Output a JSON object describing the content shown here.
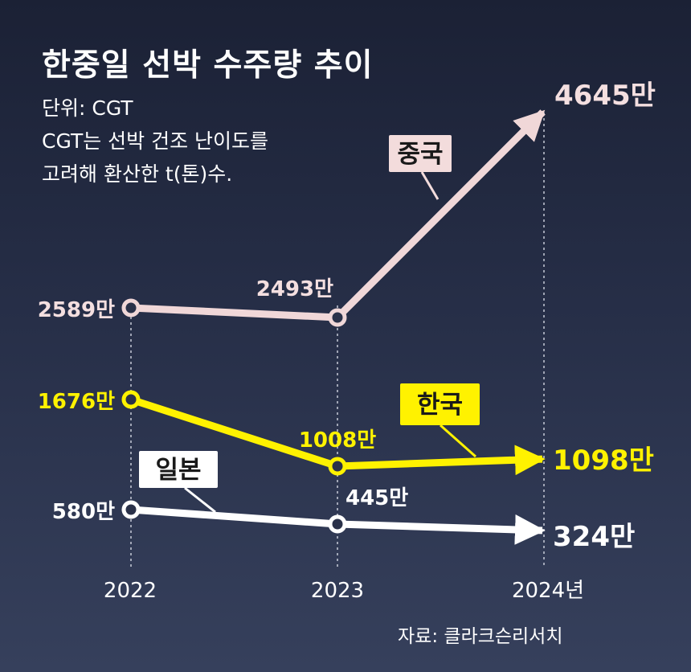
{
  "title": "한중일 선박 수주량 추이",
  "notes": [
    "단위: CGT",
    "CGT는 선박 건조 난이도를",
    "고려해 환산한 t(톤)수."
  ],
  "source": "자료: 클라크슨리서치",
  "chart_data": {
    "type": "line",
    "x": [
      "2022",
      "2023",
      "2024"
    ],
    "x_tick_labels": [
      "2022",
      "2023",
      "2024년"
    ],
    "unit": "만 CGT",
    "series": [
      {
        "name": "중국",
        "values": [
          2589,
          2493,
          4645
        ],
        "labels": [
          "2589만",
          "2493만",
          "4645만"
        ],
        "color": "#f0d7d8"
      },
      {
        "name": "한국",
        "values": [
          1676,
          1008,
          1098
        ],
        "labels": [
          "1676만",
          "1008만",
          "1098만"
        ],
        "color": "#fff200"
      },
      {
        "name": "일본",
        "values": [
          580,
          445,
          324
        ],
        "labels": [
          "580만",
          "445만",
          "324만"
        ],
        "color": "#ffffff"
      }
    ]
  }
}
